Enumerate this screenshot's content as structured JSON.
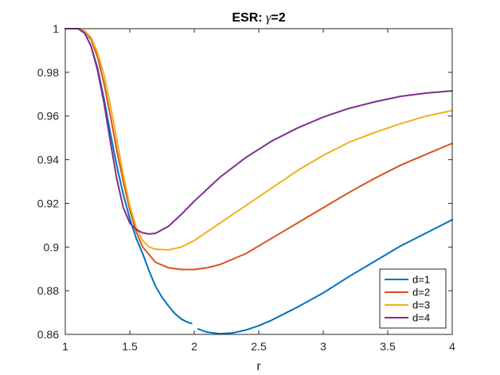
{
  "chart_data": {
    "type": "line",
    "title_prefix": "ESR: ",
    "title_symbol": "γ",
    "title_suffix": "=2",
    "xlabel": "r",
    "ylabel": "",
    "xlim": [
      1,
      4
    ],
    "ylim": [
      0.86,
      1.0
    ],
    "xticks": [
      "1",
      "1.5",
      "2",
      "2.5",
      "3",
      "3.5",
      "4"
    ],
    "yticks": [
      "0.86",
      "0.88",
      "0.9",
      "0.92",
      "0.94",
      "0.96",
      "0.98",
      "1"
    ],
    "grid": false,
    "legend_position": "bottom-right",
    "series": [
      {
        "name": "d=1",
        "color": "#0072BD",
        "x": [
          1.0,
          1.1,
          1.15,
          1.2,
          1.25,
          1.3,
          1.35,
          1.4,
          1.45,
          1.5,
          1.55,
          1.6,
          1.65,
          1.7,
          1.75,
          1.8,
          1.85,
          1.9,
          1.95,
          1.98,
          null,
          2.03,
          2.1,
          2.2,
          2.3,
          2.4,
          2.5,
          2.6,
          2.7,
          2.8,
          3.0,
          3.2,
          3.4,
          3.6,
          3.8,
          4.0
        ],
        "values": [
          1.0,
          1.0,
          0.998,
          0.992,
          0.982,
          0.968,
          0.952,
          0.937,
          0.924,
          0.913,
          0.904,
          0.897,
          0.889,
          0.882,
          0.877,
          0.873,
          0.8695,
          0.867,
          0.8655,
          0.865,
          null,
          0.8625,
          0.861,
          0.8603,
          0.8607,
          0.862,
          0.864,
          0.8665,
          0.8695,
          0.8725,
          0.879,
          0.8865,
          0.8935,
          0.9005,
          0.9065,
          0.9125
        ]
      },
      {
        "name": "d=2",
        "color": "#D95319",
        "x": [
          1.0,
          1.1,
          1.15,
          1.2,
          1.25,
          1.3,
          1.35,
          1.4,
          1.45,
          1.5,
          1.55,
          1.6,
          1.7,
          1.8,
          1.9,
          2.0,
          2.1,
          2.2,
          2.4,
          2.6,
          2.8,
          3.0,
          3.2,
          3.4,
          3.6,
          3.8,
          4.0
        ],
        "values": [
          1.0,
          1.0,
          0.999,
          0.995,
          0.987,
          0.975,
          0.96,
          0.944,
          0.93,
          0.917,
          0.907,
          0.9,
          0.893,
          0.8905,
          0.8897,
          0.8897,
          0.8905,
          0.892,
          0.897,
          0.904,
          0.911,
          0.918,
          0.925,
          0.9315,
          0.9375,
          0.9425,
          0.9475
        ]
      },
      {
        "name": "d=3",
        "color": "#EDB120",
        "x": [
          1.0,
          1.1,
          1.15,
          1.2,
          1.25,
          1.3,
          1.35,
          1.4,
          1.45,
          1.5,
          1.55,
          1.6,
          1.65,
          1.7,
          1.8,
          1.9,
          2.0,
          2.2,
          2.4,
          2.6,
          2.8,
          3.0,
          3.2,
          3.4,
          3.6,
          3.8,
          4.0
        ],
        "values": [
          1.0,
          1.0,
          0.999,
          0.996,
          0.989,
          0.979,
          0.965,
          0.949,
          0.933,
          0.919,
          0.909,
          0.903,
          0.9,
          0.899,
          0.8987,
          0.9,
          0.903,
          0.911,
          0.919,
          0.927,
          0.935,
          0.942,
          0.948,
          0.9525,
          0.9565,
          0.96,
          0.9625
        ]
      },
      {
        "name": "d=4",
        "color": "#7E2F8E",
        "x": [
          1.0,
          1.1,
          1.15,
          1.2,
          1.25,
          1.3,
          1.35,
          1.4,
          1.45,
          1.5,
          1.55,
          1.6,
          1.65,
          1.7,
          1.8,
          1.9,
          2.0,
          2.2,
          2.4,
          2.6,
          2.8,
          3.0,
          3.2,
          3.4,
          3.6,
          3.8,
          4.0
        ],
        "values": [
          1.0,
          1.0,
          0.998,
          0.992,
          0.981,
          0.966,
          0.948,
          0.931,
          0.918,
          0.911,
          0.908,
          0.9065,
          0.906,
          0.9063,
          0.9095,
          0.915,
          0.921,
          0.932,
          0.941,
          0.9485,
          0.9545,
          0.9595,
          0.9635,
          0.9665,
          0.969,
          0.9705,
          0.9715
        ]
      }
    ]
  }
}
